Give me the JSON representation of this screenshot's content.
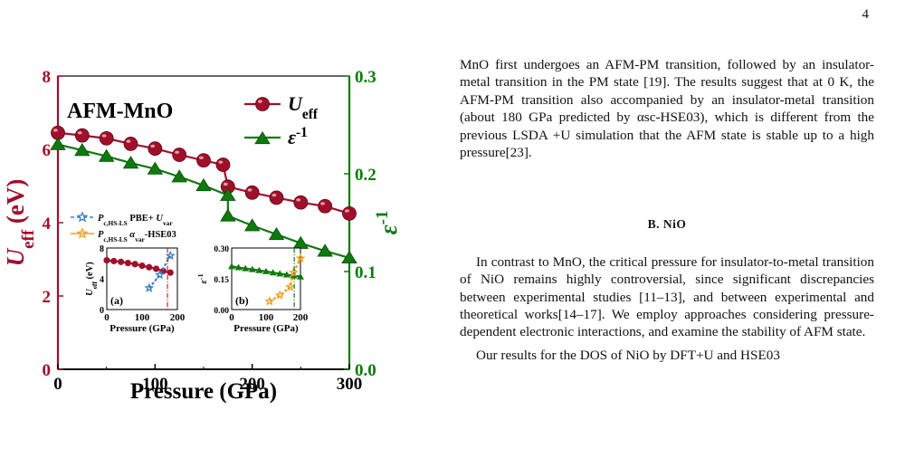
{
  "page_number": "4",
  "text": {
    "para1": "MnO first undergoes an AFM-PM transition, followed by an insulator-metal transition in the PM state [19]. The results suggest that at 0 K, the AFM-PM transition also accompanied by an insulator-metal transition (about 180 GPa predicted by αsc-HSE03), which is different from the previous LSDA +U simulation that the AFM state is stable up to a high pressure[23].",
    "section_heading": "B.   NiO",
    "para2": "In contrast to MnO, the critical pressure for insulator-to-metal transition of NiO remains highly controversial, since significant discrepancies between experimental studies [11–13], and between experimental and theoretical works[14–17]. We employ approaches considering pressure-dependent electronic interactions, and examine the stability of AFM state.",
    "para3": "Our results for the DOS of NiO by DFT+U and HSE03"
  },
  "chart_data": [
    {
      "type": "line",
      "title": "AFM-MnO",
      "xlabel": "Pressure (GPa)",
      "ylabel_left": "U_eff (eV)",
      "ylabel_right": "ε^-1",
      "xlim": [
        0,
        300
      ],
      "ylim_left": [
        0,
        8
      ],
      "ylim_right": [
        0,
        0.3
      ],
      "x_ticks": [
        "0",
        "100",
        "200",
        "300"
      ],
      "y_ticks_left": [
        "0",
        "2",
        "4",
        "6",
        "8"
      ],
      "y_ticks_right": [
        "0.0",
        "0.1",
        "0.2",
        "0.3"
      ],
      "colors": {
        "ueff": "#a0102a",
        "eps": "#0e7a0e",
        "star_blue": "#3a7fc2",
        "star_orange": "#f0a020"
      },
      "legend": [
        "U_eff",
        "ε^-1"
      ],
      "series": [
        {
          "name": "U_eff",
          "axis": "left",
          "x": [
            0,
            25,
            50,
            75,
            100,
            125,
            150,
            170,
            175,
            200,
            225,
            250,
            275,
            300
          ],
          "y": [
            6.45,
            6.38,
            6.3,
            6.15,
            6.02,
            5.85,
            5.7,
            5.58,
            4.98,
            4.82,
            4.68,
            4.55,
            4.45,
            4.25
          ]
        },
        {
          "name": "ε^-1",
          "axis": "right",
          "x": [
            0,
            25,
            50,
            75,
            100,
            125,
            150,
            175,
            175,
            200,
            225,
            250,
            275,
            300
          ],
          "y": [
            0.23,
            0.224,
            0.218,
            0.211,
            0.205,
            0.197,
            0.188,
            0.178,
            0.157,
            0.147,
            0.138,
            0.129,
            0.121,
            0.114
          ]
        }
      ]
    },
    {
      "type": "line",
      "panel": "(a)",
      "xlabel": "Pressure (GPa)",
      "ylabel": "U_eff (eV)",
      "xlim": [
        0,
        200
      ],
      "ylim": [
        0,
        8
      ],
      "x_ticks": [
        "0",
        "100",
        "200"
      ],
      "y_ticks": [
        "0",
        "4",
        "8"
      ],
      "legend": [
        "P_c,HS-LS  PBE+ U_var",
        "P_c,HS-LS  α_var-HSE03"
      ],
      "series": [
        {
          "name": "U_eff",
          "x": [
            0,
            20,
            40,
            60,
            80,
            100,
            120,
            140,
            160,
            180
          ],
          "y": [
            6.4,
            6.3,
            6.2,
            6.05,
            5.9,
            5.7,
            5.5,
            5.3,
            5.0,
            4.8
          ]
        },
        {
          "name": "P_c,HS-LS  PBE+ U_var",
          "x": [
            120,
            150,
            180
          ],
          "y": [
            2.8,
            4.5,
            7.0
          ]
        }
      ]
    },
    {
      "type": "line",
      "panel": "(b)",
      "xlabel": "Pressure (GPa)",
      "ylabel": "ε^-1",
      "xlim": [
        0,
        200
      ],
      "ylim": [
        0,
        0.3
      ],
      "x_ticks": [
        "0",
        "100",
        "200"
      ],
      "y_ticks": [
        "0.00",
        "0.15",
        "0.30"
      ],
      "series": [
        {
          "name": "ε^-1",
          "x": [
            0,
            20,
            40,
            60,
            80,
            100,
            120,
            140,
            160,
            180,
            200
          ],
          "y": [
            0.21,
            0.205,
            0.2,
            0.196,
            0.191,
            0.186,
            0.18,
            0.175,
            0.17,
            0.165,
            0.16
          ]
        },
        {
          "name": "P_c,HS-LS  α_var-HSE03",
          "x": [
            110,
            140,
            170,
            180,
            200
          ],
          "y": [
            0.04,
            0.07,
            0.11,
            0.18,
            0.25
          ]
        }
      ]
    }
  ]
}
